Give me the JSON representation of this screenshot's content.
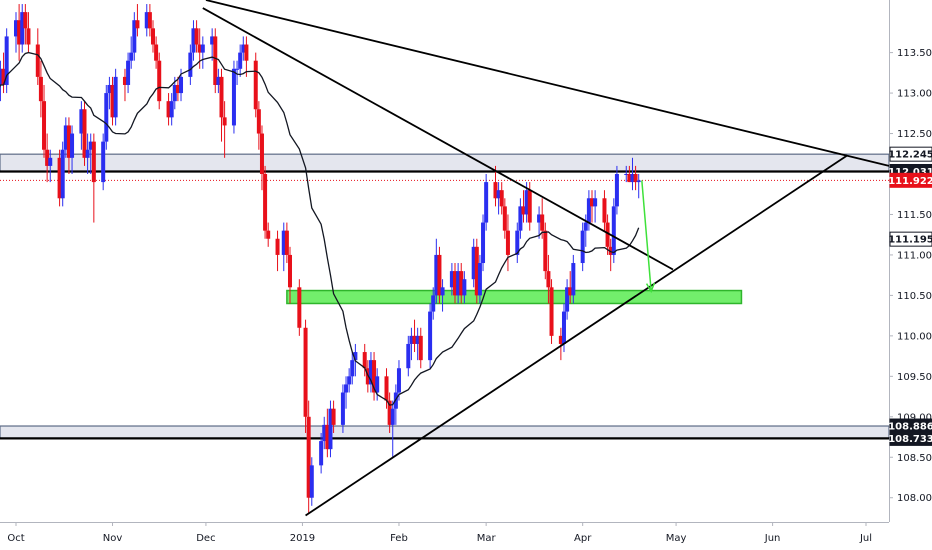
{
  "chart_data": {
    "type": "candlestick",
    "title": "",
    "xlabel": "",
    "ylabel": "",
    "ylim": [
      107.7,
      114.15
    ],
    "colors": {
      "up": "#2a2ef0",
      "down": "#e8101a",
      "ma": "#131722",
      "zone_fill": "#e4e6ee",
      "zone_edge": "#5d6b86",
      "support_fill": "#72ee6c",
      "support_edge": "#2fb52c",
      "arrow": "#3ee13a",
      "last_price": "#e8101a"
    },
    "x_axis": {
      "tick_labels": [
        "Oct",
        "Nov",
        "Dec",
        "2019",
        "Feb",
        "Mar",
        "Apr",
        "May",
        "Jun",
        "Jul"
      ],
      "tick_dates": [
        "2018-10-01",
        "2018-11-01",
        "2018-12-01",
        "2019-01-01",
        "2019-02-01",
        "2019-03-01",
        "2019-04-01",
        "2019-05-01",
        "2019-06-01",
        "2019-07-01"
      ]
    },
    "y_axis": {
      "tick_labels": [
        "108.000",
        "108.500",
        "109.000",
        "109.500",
        "110.000",
        "110.500",
        "111.000",
        "111.500",
        "112.000",
        "112.500",
        "113.000",
        "113.500"
      ],
      "tick_values": [
        108.0,
        108.5,
        109.0,
        109.5,
        110.0,
        110.5,
        111.0,
        111.5,
        112.0,
        112.5,
        113.0,
        113.5
      ]
    },
    "price_labels": [
      {
        "text": "112.245",
        "value": 112.245,
        "style": "outline"
      },
      {
        "text": "112.031",
        "value": 112.031,
        "style": "dark"
      },
      {
        "text": "111.922",
        "value": 111.922,
        "style": "red"
      },
      {
        "text": "111.195",
        "value": 111.195,
        "style": "outline"
      },
      {
        "text": "108.886",
        "value": 108.886,
        "style": "dark"
      },
      {
        "text": "108.733",
        "value": 108.733,
        "style": "dark"
      }
    ],
    "last_price": 111.922,
    "zones": [
      {
        "name": "resistance-zone",
        "from": "2018-09-25",
        "to": "2019-07-10",
        "low": 112.031,
        "high": 112.245
      },
      {
        "name": "lower-zone",
        "from": "2018-09-25",
        "to": "2019-07-10",
        "low": 108.733,
        "high": 108.886
      },
      {
        "name": "support-zone",
        "from": "2018-12-27",
        "to": "2019-05-22",
        "low": 110.4,
        "high": 110.56
      }
    ],
    "trendlines": [
      {
        "name": "upper-trendline",
        "from": [
          "2018-12-01",
          114.15
        ],
        "to": [
          "2019-07-10",
          112.1
        ]
      },
      {
        "name": "inner-trendline",
        "from": [
          "2018-11-30",
          114.05
        ],
        "to": [
          "2019-04-30",
          110.82
        ]
      },
      {
        "name": "rising-trendline",
        "from": [
          "2019-01-02",
          107.78
        ],
        "to": [
          "2019-06-25",
          112.23
        ]
      }
    ],
    "arrow": {
      "from": [
        "2019-04-20",
        111.92
      ],
      "to": [
        "2019-04-23",
        110.55
      ]
    },
    "ohlc": [
      [
        "2018-09-24",
        112.7,
        113.0,
        112.5,
        112.9
      ],
      [
        "2018-09-25",
        112.9,
        113.2,
        112.8,
        113.1
      ],
      [
        "2018-09-26",
        113.1,
        113.4,
        112.9,
        113.3
      ],
      [
        "2018-09-27",
        113.3,
        113.5,
        113.0,
        113.1
      ],
      [
        "2018-09-28",
        113.1,
        113.8,
        113.0,
        113.7
      ],
      [
        "2018-10-01",
        113.7,
        114.0,
        113.5,
        113.9
      ],
      [
        "2018-10-02",
        113.9,
        114.1,
        113.4,
        113.6
      ],
      [
        "2018-10-03",
        113.6,
        114.1,
        113.5,
        114.0
      ],
      [
        "2018-10-04",
        114.0,
        114.1,
        113.6,
        113.8
      ],
      [
        "2018-10-05",
        113.8,
        114.0,
        113.5,
        113.6
      ],
      [
        "2018-10-08",
        113.6,
        113.8,
        113.1,
        113.2
      ],
      [
        "2018-10-09",
        113.2,
        113.4,
        112.7,
        112.9
      ],
      [
        "2018-10-10",
        112.9,
        113.1,
        112.2,
        112.3
      ],
      [
        "2018-10-11",
        112.3,
        112.5,
        111.9,
        112.1
      ],
      [
        "2018-10-12",
        112.1,
        112.3,
        111.9,
        112.2
      ],
      [
        "2018-10-15",
        112.2,
        112.3,
        111.6,
        111.7
      ],
      [
        "2018-10-16",
        111.7,
        112.4,
        111.6,
        112.3
      ],
      [
        "2018-10-17",
        112.3,
        112.7,
        112.2,
        112.6
      ],
      [
        "2018-10-18",
        112.6,
        112.7,
        112.0,
        112.2
      ],
      [
        "2018-10-19",
        112.2,
        112.6,
        112.0,
        112.5
      ],
      [
        "2018-10-22",
        112.5,
        112.9,
        112.3,
        112.8
      ],
      [
        "2018-10-23",
        112.8,
        112.9,
        112.1,
        112.2
      ],
      [
        "2018-10-24",
        112.2,
        112.5,
        112.0,
        112.3
      ],
      [
        "2018-10-25",
        112.3,
        112.5,
        112.0,
        112.4
      ],
      [
        "2018-10-26",
        112.4,
        112.5,
        111.4,
        111.9
      ],
      [
        "2018-10-29",
        111.9,
        112.5,
        111.8,
        112.4
      ],
      [
        "2018-10-30",
        112.4,
        113.1,
        112.3,
        113.0
      ],
      [
        "2018-10-31",
        113.0,
        113.2,
        112.8,
        113.1
      ],
      [
        "2018-11-01",
        113.1,
        113.2,
        112.6,
        112.7
      ],
      [
        "2018-11-02",
        112.7,
        113.3,
        112.6,
        113.2
      ],
      [
        "2018-11-05",
        113.2,
        113.3,
        112.9,
        113.1
      ],
      [
        "2018-11-06",
        113.1,
        113.5,
        113.0,
        113.4
      ],
      [
        "2018-11-07",
        113.4,
        113.7,
        113.3,
        113.5
      ],
      [
        "2018-11-08",
        113.5,
        114.0,
        113.4,
        113.9
      ],
      [
        "2018-11-09",
        113.9,
        114.1,
        113.7,
        113.8
      ],
      [
        "2018-11-12",
        113.8,
        114.1,
        113.7,
        114.0
      ],
      [
        "2018-11-13",
        114.0,
        114.1,
        113.7,
        113.8
      ],
      [
        "2018-11-14",
        113.8,
        113.9,
        113.5,
        113.6
      ],
      [
        "2018-11-15",
        113.6,
        113.7,
        113.3,
        113.4
      ],
      [
        "2018-11-16",
        113.4,
        113.5,
        112.8,
        112.9
      ],
      [
        "2018-11-19",
        112.9,
        113.0,
        112.6,
        112.7
      ],
      [
        "2018-11-20",
        112.7,
        113.0,
        112.6,
        112.9
      ],
      [
        "2018-11-21",
        112.9,
        113.2,
        112.8,
        113.1
      ],
      [
        "2018-11-22",
        113.1,
        113.2,
        112.9,
        113.0
      ],
      [
        "2018-11-23",
        113.0,
        113.3,
        112.9,
        113.2
      ],
      [
        "2018-11-26",
        113.2,
        113.6,
        113.1,
        113.5
      ],
      [
        "2018-11-27",
        113.5,
        113.9,
        113.4,
        113.8
      ],
      [
        "2018-11-28",
        113.8,
        113.9,
        113.5,
        113.6
      ],
      [
        "2018-11-29",
        113.6,
        113.8,
        113.3,
        113.5
      ],
      [
        "2018-11-30",
        113.5,
        113.7,
        113.3,
        113.6
      ],
      [
        "2018-12-03",
        113.6,
        113.8,
        113.4,
        113.7
      ],
      [
        "2018-12-04",
        113.7,
        113.8,
        113.0,
        113.1
      ],
      [
        "2018-12-05",
        113.1,
        113.3,
        113.0,
        113.2
      ],
      [
        "2018-12-06",
        113.2,
        113.3,
        112.4,
        112.7
      ],
      [
        "2018-12-07",
        112.7,
        112.9,
        112.2,
        112.6
      ],
      [
        "2018-12-10",
        112.6,
        113.4,
        112.5,
        113.3
      ],
      [
        "2018-12-11",
        113.3,
        113.4,
        113.1,
        113.3
      ],
      [
        "2018-12-12",
        113.3,
        113.6,
        113.2,
        113.5
      ],
      [
        "2018-12-13",
        113.5,
        113.7,
        113.4,
        113.6
      ],
      [
        "2018-12-14",
        113.6,
        113.7,
        113.2,
        113.4
      ],
      [
        "2018-12-17",
        113.4,
        113.5,
        112.7,
        112.8
      ],
      [
        "2018-12-18",
        112.8,
        112.9,
        112.3,
        112.5
      ],
      [
        "2018-12-19",
        112.5,
        112.6,
        111.8,
        112.0
      ],
      [
        "2018-12-20",
        112.0,
        112.1,
        111.2,
        111.3
      ],
      [
        "2018-12-21",
        111.3,
        111.4,
        111.1,
        111.2
      ],
      [
        "2018-12-24",
        111.2,
        111.3,
        110.8,
        111.0
      ],
      [
        "2018-12-26",
        111.0,
        111.4,
        110.8,
        111.3
      ],
      [
        "2018-12-27",
        111.3,
        111.4,
        110.9,
        111.0
      ],
      [
        "2018-12-28",
        111.0,
        111.1,
        110.4,
        110.6
      ],
      [
        "2018-12-31",
        110.6,
        110.7,
        110.0,
        110.1
      ],
      [
        "2019-01-02",
        110.1,
        110.2,
        108.8,
        109.0
      ],
      [
        "2019-01-03",
        109.0,
        109.2,
        107.8,
        108.0
      ],
      [
        "2019-01-04",
        108.0,
        108.5,
        107.9,
        108.4
      ],
      [
        "2019-01-07",
        108.4,
        108.8,
        108.3,
        108.7
      ],
      [
        "2019-01-08",
        108.7,
        109.0,
        108.6,
        108.9
      ],
      [
        "2019-01-09",
        108.9,
        109.1,
        108.5,
        108.6
      ],
      [
        "2019-01-10",
        108.6,
        109.2,
        108.5,
        109.1
      ],
      [
        "2019-01-11",
        109.1,
        109.2,
        108.8,
        108.9
      ],
      [
        "2019-01-14",
        108.9,
        109.4,
        108.8,
        109.3
      ],
      [
        "2019-01-15",
        109.3,
        109.5,
        109.1,
        109.4
      ],
      [
        "2019-01-16",
        109.4,
        109.6,
        109.3,
        109.5
      ],
      [
        "2019-01-17",
        109.5,
        109.8,
        109.4,
        109.7
      ],
      [
        "2019-01-18",
        109.7,
        109.9,
        109.5,
        109.8
      ],
      [
        "2019-01-21",
        109.8,
        109.9,
        109.5,
        109.6
      ],
      [
        "2019-01-22",
        109.6,
        109.7,
        109.3,
        109.4
      ],
      [
        "2019-01-23",
        109.4,
        109.8,
        109.3,
        109.7
      ],
      [
        "2019-01-24",
        109.7,
        109.8,
        109.2,
        109.3
      ],
      [
        "2019-01-25",
        109.3,
        109.6,
        109.2,
        109.5
      ],
      [
        "2019-01-28",
        109.5,
        109.6,
        109.1,
        109.2
      ],
      [
        "2019-01-29",
        109.2,
        109.3,
        108.8,
        108.9
      ],
      [
        "2019-01-30",
        108.9,
        109.2,
        108.5,
        109.1
      ],
      [
        "2019-01-31",
        109.1,
        109.4,
        108.9,
        109.3
      ],
      [
        "2019-02-01",
        109.3,
        109.7,
        109.2,
        109.6
      ],
      [
        "2019-02-04",
        109.6,
        110.0,
        109.5,
        109.9
      ],
      [
        "2019-02-05",
        109.9,
        110.1,
        109.7,
        110.0
      ],
      [
        "2019-02-06",
        110.0,
        110.2,
        109.8,
        109.9
      ],
      [
        "2019-02-07",
        109.9,
        110.1,
        109.7,
        110.0
      ],
      [
        "2019-02-08",
        110.0,
        110.1,
        109.6,
        109.7
      ],
      [
        "2019-02-11",
        109.7,
        110.4,
        109.6,
        110.3
      ],
      [
        "2019-02-12",
        110.3,
        110.6,
        110.2,
        110.5
      ],
      [
        "2019-02-13",
        110.5,
        111.2,
        110.4,
        111.0
      ],
      [
        "2019-02-14",
        111.0,
        111.1,
        110.4,
        110.5
      ],
      [
        "2019-02-15",
        110.5,
        110.7,
        110.3,
        110.6
      ],
      [
        "2019-02-18",
        110.6,
        110.9,
        110.5,
        110.8
      ],
      [
        "2019-02-19",
        110.8,
        110.9,
        110.4,
        110.5
      ],
      [
        "2019-02-20",
        110.5,
        110.9,
        110.4,
        110.8
      ],
      [
        "2019-02-21",
        110.8,
        110.9,
        110.4,
        110.5
      ],
      [
        "2019-02-22",
        110.5,
        110.8,
        110.4,
        110.7
      ],
      [
        "2019-02-25",
        110.7,
        111.2,
        110.6,
        111.1
      ],
      [
        "2019-02-26",
        111.1,
        111.2,
        110.4,
        110.5
      ],
      [
        "2019-02-27",
        110.5,
        111.0,
        110.4,
        110.9
      ],
      [
        "2019-02-28",
        110.9,
        111.5,
        110.8,
        111.4
      ],
      [
        "2019-03-01",
        111.4,
        112.0,
        111.3,
        111.9
      ],
      [
        "2019-03-04",
        111.9,
        112.1,
        111.6,
        111.7
      ],
      [
        "2019-03-05",
        111.7,
        111.9,
        111.5,
        111.8
      ],
      [
        "2019-03-06",
        111.8,
        111.9,
        111.5,
        111.6
      ],
      [
        "2019-03-07",
        111.6,
        111.7,
        111.2,
        111.3
      ],
      [
        "2019-03-08",
        111.3,
        111.5,
        110.8,
        111.0
      ],
      [
        "2019-03-11",
        111.0,
        111.4,
        110.9,
        111.3
      ],
      [
        "2019-03-12",
        111.3,
        111.7,
        111.2,
        111.6
      ],
      [
        "2019-03-13",
        111.6,
        111.8,
        111.4,
        111.5
      ],
      [
        "2019-03-14",
        111.5,
        111.9,
        111.4,
        111.8
      ],
      [
        "2019-03-15",
        111.8,
        111.9,
        111.3,
        111.4
      ],
      [
        "2019-03-18",
        111.4,
        111.6,
        111.2,
        111.5
      ],
      [
        "2019-03-19",
        111.5,
        111.7,
        111.2,
        111.3
      ],
      [
        "2019-03-20",
        111.3,
        111.4,
        110.7,
        110.8
      ],
      [
        "2019-03-21",
        110.8,
        111.0,
        110.4,
        110.6
      ],
      [
        "2019-03-22",
        110.6,
        110.7,
        109.9,
        110.0
      ],
      [
        "2019-03-25",
        110.0,
        110.1,
        109.7,
        109.9
      ],
      [
        "2019-03-26",
        109.9,
        110.4,
        109.8,
        110.3
      ],
      [
        "2019-03-27",
        110.3,
        110.7,
        110.2,
        110.6
      ],
      [
        "2019-03-28",
        110.6,
        110.8,
        110.4,
        110.5
      ],
      [
        "2019-03-29",
        110.5,
        111.0,
        110.4,
        110.9
      ],
      [
        "2019-04-01",
        110.9,
        111.4,
        110.8,
        111.3
      ],
      [
        "2019-04-02",
        111.3,
        111.5,
        111.1,
        111.4
      ],
      [
        "2019-04-03",
        111.4,
        111.8,
        111.3,
        111.7
      ],
      [
        "2019-04-04",
        111.7,
        111.8,
        111.4,
        111.6
      ],
      [
        "2019-04-05",
        111.6,
        111.8,
        111.4,
        111.7
      ],
      [
        "2019-04-08",
        111.7,
        111.8,
        111.3,
        111.4
      ],
      [
        "2019-04-09",
        111.4,
        111.5,
        111.0,
        111.1
      ],
      [
        "2019-04-10",
        111.1,
        111.2,
        110.8,
        111.0
      ],
      [
        "2019-04-11",
        111.0,
        111.7,
        110.9,
        111.6
      ],
      [
        "2019-04-12",
        111.6,
        112.1,
        111.5,
        112.0
      ],
      [
        "2019-04-15",
        112.0,
        112.1,
        111.9,
        112.0
      ],
      [
        "2019-04-16",
        112.0,
        112.1,
        111.9,
        111.9
      ],
      [
        "2019-04-17",
        111.9,
        112.2,
        111.8,
        112.0
      ],
      [
        "2019-04-18",
        112.0,
        112.1,
        111.8,
        111.9
      ],
      [
        "2019-04-19",
        111.9,
        112.0,
        111.7,
        111.92
      ]
    ]
  }
}
